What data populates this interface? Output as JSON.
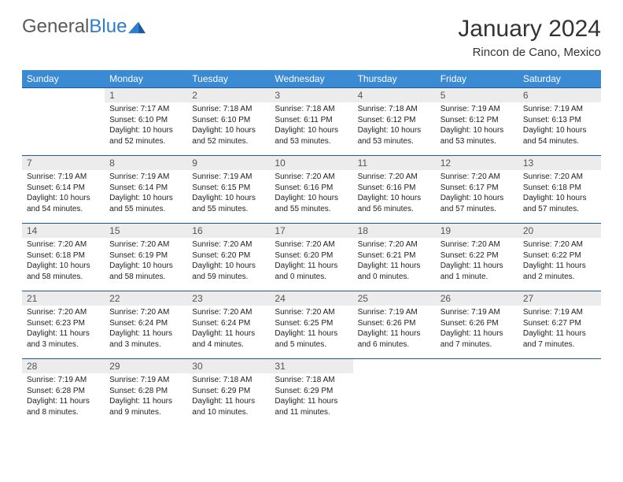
{
  "logo": {
    "text1": "General",
    "text2": "Blue"
  },
  "colors": {
    "header_bg": "#3b8bd4",
    "header_text": "#ffffff",
    "row_divider": "#1e5a9e",
    "daynum_bg": "#ececec",
    "daynum_text": "#555555",
    "body_text": "#222222",
    "logo_gray": "#5a5a5a",
    "logo_blue": "#2e7cd1"
  },
  "title": "January 2024",
  "subtitle": "Rincon de Cano, Mexico",
  "weekdays": [
    "Sunday",
    "Monday",
    "Tuesday",
    "Wednesday",
    "Thursday",
    "Friday",
    "Saturday"
  ],
  "weeks": [
    [
      {
        "empty": true
      },
      {
        "n": "1",
        "sr": "7:17 AM",
        "ss": "6:10 PM",
        "dl": "10 hours and 52 minutes."
      },
      {
        "n": "2",
        "sr": "7:18 AM",
        "ss": "6:10 PM",
        "dl": "10 hours and 52 minutes."
      },
      {
        "n": "3",
        "sr": "7:18 AM",
        "ss": "6:11 PM",
        "dl": "10 hours and 53 minutes."
      },
      {
        "n": "4",
        "sr": "7:18 AM",
        "ss": "6:12 PM",
        "dl": "10 hours and 53 minutes."
      },
      {
        "n": "5",
        "sr": "7:19 AM",
        "ss": "6:12 PM",
        "dl": "10 hours and 53 minutes."
      },
      {
        "n": "6",
        "sr": "7:19 AM",
        "ss": "6:13 PM",
        "dl": "10 hours and 54 minutes."
      }
    ],
    [
      {
        "n": "7",
        "sr": "7:19 AM",
        "ss": "6:14 PM",
        "dl": "10 hours and 54 minutes."
      },
      {
        "n": "8",
        "sr": "7:19 AM",
        "ss": "6:14 PM",
        "dl": "10 hours and 55 minutes."
      },
      {
        "n": "9",
        "sr": "7:19 AM",
        "ss": "6:15 PM",
        "dl": "10 hours and 55 minutes."
      },
      {
        "n": "10",
        "sr": "7:20 AM",
        "ss": "6:16 PM",
        "dl": "10 hours and 55 minutes."
      },
      {
        "n": "11",
        "sr": "7:20 AM",
        "ss": "6:16 PM",
        "dl": "10 hours and 56 minutes."
      },
      {
        "n": "12",
        "sr": "7:20 AM",
        "ss": "6:17 PM",
        "dl": "10 hours and 57 minutes."
      },
      {
        "n": "13",
        "sr": "7:20 AM",
        "ss": "6:18 PM",
        "dl": "10 hours and 57 minutes."
      }
    ],
    [
      {
        "n": "14",
        "sr": "7:20 AM",
        "ss": "6:18 PM",
        "dl": "10 hours and 58 minutes."
      },
      {
        "n": "15",
        "sr": "7:20 AM",
        "ss": "6:19 PM",
        "dl": "10 hours and 58 minutes."
      },
      {
        "n": "16",
        "sr": "7:20 AM",
        "ss": "6:20 PM",
        "dl": "10 hours and 59 minutes."
      },
      {
        "n": "17",
        "sr": "7:20 AM",
        "ss": "6:20 PM",
        "dl": "11 hours and 0 minutes."
      },
      {
        "n": "18",
        "sr": "7:20 AM",
        "ss": "6:21 PM",
        "dl": "11 hours and 0 minutes."
      },
      {
        "n": "19",
        "sr": "7:20 AM",
        "ss": "6:22 PM",
        "dl": "11 hours and 1 minute."
      },
      {
        "n": "20",
        "sr": "7:20 AM",
        "ss": "6:22 PM",
        "dl": "11 hours and 2 minutes."
      }
    ],
    [
      {
        "n": "21",
        "sr": "7:20 AM",
        "ss": "6:23 PM",
        "dl": "11 hours and 3 minutes."
      },
      {
        "n": "22",
        "sr": "7:20 AM",
        "ss": "6:24 PM",
        "dl": "11 hours and 3 minutes."
      },
      {
        "n": "23",
        "sr": "7:20 AM",
        "ss": "6:24 PM",
        "dl": "11 hours and 4 minutes."
      },
      {
        "n": "24",
        "sr": "7:20 AM",
        "ss": "6:25 PM",
        "dl": "11 hours and 5 minutes."
      },
      {
        "n": "25",
        "sr": "7:19 AM",
        "ss": "6:26 PM",
        "dl": "11 hours and 6 minutes."
      },
      {
        "n": "26",
        "sr": "7:19 AM",
        "ss": "6:26 PM",
        "dl": "11 hours and 7 minutes."
      },
      {
        "n": "27",
        "sr": "7:19 AM",
        "ss": "6:27 PM",
        "dl": "11 hours and 7 minutes."
      }
    ],
    [
      {
        "n": "28",
        "sr": "7:19 AM",
        "ss": "6:28 PM",
        "dl": "11 hours and 8 minutes."
      },
      {
        "n": "29",
        "sr": "7:19 AM",
        "ss": "6:28 PM",
        "dl": "11 hours and 9 minutes."
      },
      {
        "n": "30",
        "sr": "7:18 AM",
        "ss": "6:29 PM",
        "dl": "11 hours and 10 minutes."
      },
      {
        "n": "31",
        "sr": "7:18 AM",
        "ss": "6:29 PM",
        "dl": "11 hours and 11 minutes."
      },
      {
        "empty": true
      },
      {
        "empty": true
      },
      {
        "empty": true
      }
    ]
  ],
  "labels": {
    "sunrise": "Sunrise: ",
    "sunset": "Sunset: ",
    "daylight": "Daylight: "
  }
}
